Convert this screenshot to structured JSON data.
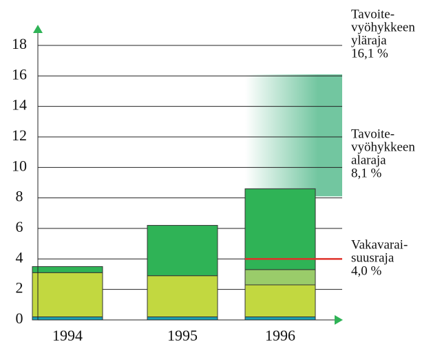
{
  "chart_data": {
    "type": "bar",
    "stacked": true,
    "categories": [
      "1994",
      "1995",
      "1996"
    ],
    "series": [
      {
        "color": "#1aa0b4",
        "values": [
          0.2,
          0.2,
          0.2
        ]
      },
      {
        "color": "#c2d840",
        "values": [
          2.9,
          2.7,
          2.1
        ]
      },
      {
        "color": "#9acc6a",
        "values": [
          0,
          0,
          1.0
        ]
      },
      {
        "color": "#2fb356",
        "values": [
          0.4,
          3.3,
          5.3
        ]
      }
    ],
    "ylim": [
      0,
      18
    ],
    "yticks": [
      0,
      2,
      4,
      6,
      8,
      10,
      12,
      14,
      16,
      18
    ],
    "grid": true,
    "target_zone": {
      "low": 8.1,
      "high": 16.1,
      "color": "#72c6a0"
    },
    "threshold": {
      "value": 4.0,
      "color": "#e0302a"
    },
    "annotations": [
      {
        "lines": [
          "Tavoite-",
          "vyöhykkeen",
          "yläraja",
          "16,1 %"
        ]
      },
      {
        "lines": [
          "Tavoite-",
          "vyöhykkeen",
          "alaraja",
          "8,1 %"
        ]
      },
      {
        "lines": [
          "Vakavarai-",
          "suusraja",
          "4,0 %"
        ]
      }
    ]
  }
}
